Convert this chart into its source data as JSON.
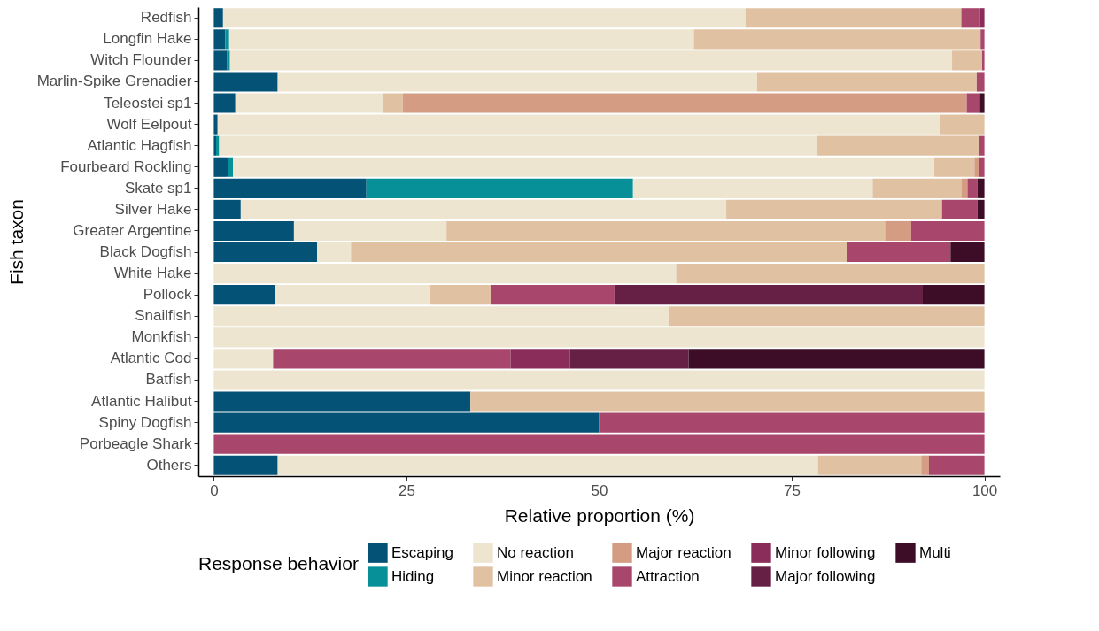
{
  "chart_data": {
    "type": "bar",
    "orientation": "horizontal",
    "stacked": true,
    "xlabel": "Relative proportion (%)",
    "ylabel": "Fish taxon",
    "legend_title": "Response behavior",
    "categories": [
      "Redfish",
      "Longfin Hake",
      "Witch Flounder",
      "Marlin-Spike Grenadier",
      "Teleostei sp1",
      "Wolf Eelpout",
      "Atlantic Hagfish",
      "Fourbeard Rockling",
      "Skate sp1",
      "Silver Hake",
      "Greater Argentine",
      "Black Dogfish",
      "White Hake",
      "Pollock",
      "Snailfish",
      "Monkfish",
      "Atlantic Cod",
      "Batfish",
      "Atlantic Halibut",
      "Spiny Dogfish",
      "Porbeagle Shark",
      "Others"
    ],
    "xlim": [
      -2,
      102
    ],
    "xticks": [
      0,
      25,
      50,
      75,
      100
    ],
    "grid": false,
    "legend": "bottom",
    "series": [
      {
        "name": "Escaping",
        "color": "#045275",
        "values": [
          1.2,
          1.5,
          1.7,
          8.3,
          2.8,
          0.5,
          0.3,
          1.8,
          19.8,
          3.5,
          10.4,
          13.4,
          null,
          8.0,
          null,
          null,
          null,
          null,
          33.3,
          50,
          null,
          8.3
        ]
      },
      {
        "name": "Hiding",
        "color": "#089099",
        "values": [
          null,
          0.5,
          0.4,
          null,
          null,
          null,
          0.4,
          0.7,
          34.6,
          null,
          null,
          null,
          null,
          null,
          null,
          null,
          null,
          null,
          null,
          null,
          null,
          null
        ]
      },
      {
        "name": "No reaction",
        "color": "#ede5cf",
        "values": [
          67.8,
          60.3,
          93.7,
          62.2,
          19.1,
          93.7,
          77.6,
          91.0,
          31.1,
          63.0,
          19.8,
          4.4,
          60.0,
          20.0,
          59.1,
          100,
          7.7,
          100,
          null,
          null,
          null,
          70.1
        ]
      },
      {
        "name": "Minor reaction",
        "color": "#e0c2a2",
        "values": [
          28.0,
          37.2,
          3.9,
          28.5,
          2.6,
          5.8,
          21.0,
          5.2,
          11.5,
          28.0,
          56.9,
          64.4,
          40.0,
          8.0,
          40.9,
          null,
          null,
          null,
          66.7,
          null,
          null,
          13.4
        ]
      },
      {
        "name": "Major reaction",
        "color": "#d39c83",
        "values": [
          null,
          null,
          null,
          null,
          73.2,
          null,
          null,
          0.6,
          0.8,
          null,
          3.4,
          null,
          null,
          null,
          null,
          null,
          null,
          null,
          null,
          null,
          null,
          1.0
        ]
      },
      {
        "name": "Attraction",
        "color": "#a8466b",
        "values": [
          2.4,
          0.5,
          0.3,
          1.0,
          1.7,
          null,
          0.7,
          0.7,
          1.3,
          4.6,
          9.5,
          13.4,
          null,
          16.0,
          null,
          null,
          30.8,
          null,
          null,
          50,
          100,
          7.2
        ]
      },
      {
        "name": "Minor following",
        "color": "#8a2d5a",
        "values": [
          0.6,
          null,
          null,
          null,
          null,
          null,
          null,
          null,
          null,
          null,
          null,
          null,
          null,
          null,
          null,
          null,
          7.7,
          null,
          null,
          null,
          null,
          null
        ]
      },
      {
        "name": "Major following",
        "color": "#661f45",
        "values": [
          null,
          null,
          null,
          null,
          null,
          null,
          null,
          null,
          null,
          null,
          null,
          null,
          null,
          40.0,
          null,
          null,
          15.4,
          null,
          null,
          null,
          null,
          null
        ]
      },
      {
        "name": "Multi",
        "color": "#3d0c26",
        "values": [
          null,
          null,
          null,
          null,
          0.6,
          null,
          null,
          null,
          0.9,
          0.9,
          null,
          4.4,
          null,
          8.0,
          null,
          null,
          38.4,
          null,
          null,
          null,
          null,
          null
        ]
      }
    ]
  }
}
